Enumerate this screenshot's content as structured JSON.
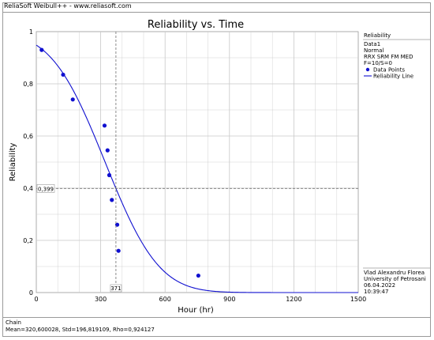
{
  "window": {
    "header": "ReliaSoft Weibull++ - www.reliasoft.com"
  },
  "legend": {
    "title": "Reliability",
    "lines": [
      "Data1",
      "Normal",
      "RRX SRM FM MED",
      "F=10/S=0"
    ],
    "data_points_label": "Data Points",
    "line_label": "Reliability Line"
  },
  "user_info": {
    "name": "Vlad Alexandru Florea",
    "org": "University of Petrosani",
    "date": "06.04.2022",
    "time": "10:39:47"
  },
  "footer": {
    "line1": "Chain",
    "line2": "Mean=320,600028, Std=196,819109, Rho=0,924127"
  },
  "colors": {
    "series": "#1010d0",
    "grid": "#c8c8c8",
    "crosshair": "#707070"
  },
  "chart_data": {
    "type": "scatter",
    "title": "Reliability vs. Time",
    "xlabel": "Hour (hr)",
    "ylabel": "Reliability",
    "xlim": [
      0,
      1500
    ],
    "ylim": [
      0,
      1
    ],
    "x_ticks": [
      "0",
      "300",
      "600",
      "900",
      "1200",
      "1500"
    ],
    "y_ticks": [
      "0",
      "0,2",
      "0,4",
      "0,6",
      "0,8",
      "1"
    ],
    "grid": true,
    "legend_position": "right",
    "marker": {
      "x": 371,
      "y": 0.399,
      "x_label": "371",
      "y_label": "0,399"
    },
    "series": [
      {
        "name": "Data Points",
        "type": "scatter",
        "points": [
          [
            25,
            0.93
          ],
          [
            125,
            0.835
          ],
          [
            170,
            0.74
          ],
          [
            318,
            0.64
          ],
          [
            332,
            0.545
          ],
          [
            340,
            0.45
          ],
          [
            352,
            0.355
          ],
          [
            377,
            0.26
          ],
          [
            383,
            0.16
          ],
          [
            755,
            0.065
          ]
        ]
      },
      {
        "name": "Reliability Line",
        "type": "line",
        "distribution": "Normal",
        "mean": 320.600028,
        "std": 196.819109
      }
    ]
  }
}
